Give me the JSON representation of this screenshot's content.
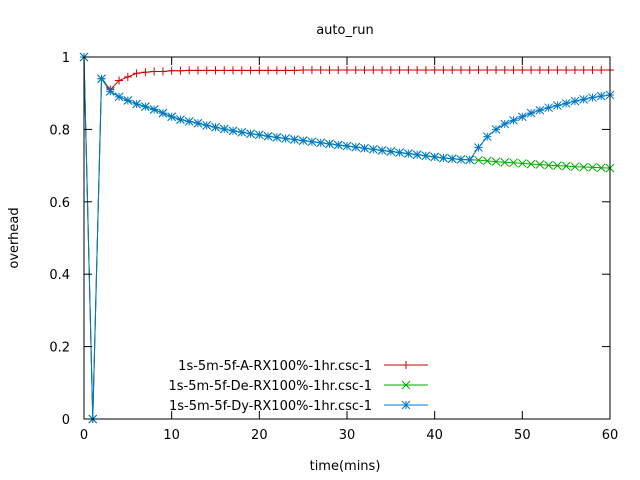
{
  "chart_data": {
    "type": "line",
    "title": "auto_run",
    "xlabel": "time(mins)",
    "ylabel": "overhead",
    "xlim": [
      0,
      60
    ],
    "ylim": [
      0,
      1
    ],
    "xticks": [
      0,
      10,
      20,
      30,
      40,
      50,
      60
    ],
    "yticks": [
      0,
      0.2,
      0.4,
      0.6,
      0.8,
      1
    ],
    "ytick_labels": [
      "0",
      "0.2",
      "0.4",
      "0.6",
      "0.8",
      "1"
    ],
    "grid": false,
    "legend_position": "bottom-left",
    "series": [
      {
        "name": "1s-5m-5f-A-RX100%-1hr.csc-1",
        "color": "#cc0000",
        "marker": "plus",
        "points": [
          [
            0,
            1
          ],
          [
            1,
            0
          ],
          [
            2,
            0.94
          ],
          [
            3,
            0.91
          ],
          [
            4,
            0.935
          ],
          [
            5,
            0.945
          ],
          [
            6,
            0.955
          ],
          [
            7,
            0.958
          ],
          [
            8,
            0.96
          ],
          [
            9,
            0.96
          ],
          [
            10,
            0.962
          ],
          [
            11,
            0.962
          ],
          [
            12,
            0.963
          ],
          [
            13,
            0.963
          ],
          [
            14,
            0.963
          ],
          [
            15,
            0.963
          ],
          [
            16,
            0.963
          ],
          [
            17,
            0.963
          ],
          [
            18,
            0.963
          ],
          [
            19,
            0.963
          ],
          [
            20,
            0.963
          ],
          [
            21,
            0.963
          ],
          [
            22,
            0.963
          ],
          [
            23,
            0.963
          ],
          [
            24,
            0.963
          ],
          [
            25,
            0.964
          ],
          [
            26,
            0.964
          ],
          [
            27,
            0.964
          ],
          [
            28,
            0.964
          ],
          [
            29,
            0.964
          ],
          [
            30,
            0.964
          ],
          [
            31,
            0.964
          ],
          [
            32,
            0.964
          ],
          [
            33,
            0.964
          ],
          [
            34,
            0.964
          ],
          [
            35,
            0.964
          ],
          [
            36,
            0.964
          ],
          [
            37,
            0.964
          ],
          [
            38,
            0.964
          ],
          [
            39,
            0.964
          ],
          [
            40,
            0.964
          ],
          [
            41,
            0.964
          ],
          [
            42,
            0.964
          ],
          [
            43,
            0.964
          ],
          [
            44,
            0.964
          ],
          [
            45,
            0.964
          ],
          [
            46,
            0.964
          ],
          [
            47,
            0.964
          ],
          [
            48,
            0.964
          ],
          [
            49,
            0.964
          ],
          [
            50,
            0.964
          ],
          [
            51,
            0.964
          ],
          [
            52,
            0.964
          ],
          [
            53,
            0.964
          ],
          [
            54,
            0.964
          ],
          [
            55,
            0.964
          ],
          [
            56,
            0.964
          ],
          [
            57,
            0.964
          ],
          [
            58,
            0.964
          ],
          [
            59,
            0.964
          ],
          [
            60,
            0.964
          ]
        ]
      },
      {
        "name": "1s-5m-5f-De-RX100%-1hr.csc-1",
        "color": "#00aa00",
        "marker": "cross",
        "points": [
          [
            0,
            1
          ],
          [
            1,
            0
          ],
          [
            2,
            0.94
          ],
          [
            3,
            0.905
          ],
          [
            4,
            0.89
          ],
          [
            5,
            0.88
          ],
          [
            6,
            0.87
          ],
          [
            7,
            0.863
          ],
          [
            8,
            0.855
          ],
          [
            9,
            0.845
          ],
          [
            10,
            0.835
          ],
          [
            11,
            0.827
          ],
          [
            12,
            0.822
          ],
          [
            13,
            0.817
          ],
          [
            14,
            0.811
          ],
          [
            15,
            0.806
          ],
          [
            16,
            0.801
          ],
          [
            17,
            0.796
          ],
          [
            18,
            0.792
          ],
          [
            19,
            0.788
          ],
          [
            20,
            0.785
          ],
          [
            21,
            0.781
          ],
          [
            22,
            0.778
          ],
          [
            23,
            0.775
          ],
          [
            24,
            0.772
          ],
          [
            25,
            0.769
          ],
          [
            26,
            0.766
          ],
          [
            27,
            0.763
          ],
          [
            28,
            0.76
          ],
          [
            29,
            0.757
          ],
          [
            30,
            0.754
          ],
          [
            31,
            0.751
          ],
          [
            32,
            0.748
          ],
          [
            33,
            0.745
          ],
          [
            34,
            0.742
          ],
          [
            35,
            0.739
          ],
          [
            36,
            0.736
          ],
          [
            37,
            0.733
          ],
          [
            38,
            0.73
          ],
          [
            39,
            0.727
          ],
          [
            40,
            0.724
          ],
          [
            41,
            0.721
          ],
          [
            42,
            0.719
          ],
          [
            43,
            0.717
          ],
          [
            44,
            0.716
          ],
          [
            45,
            0.715
          ],
          [
            46,
            0.713
          ],
          [
            47,
            0.711
          ],
          [
            48,
            0.709
          ],
          [
            49,
            0.708
          ],
          [
            50,
            0.706
          ],
          [
            51,
            0.704
          ],
          [
            52,
            0.703
          ],
          [
            53,
            0.701
          ],
          [
            54,
            0.7
          ],
          [
            55,
            0.699
          ],
          [
            56,
            0.697
          ],
          [
            57,
            0.696
          ],
          [
            58,
            0.695
          ],
          [
            59,
            0.694
          ],
          [
            60,
            0.693
          ]
        ]
      },
      {
        "name": "1s-5m-5f-Dy-RX100%-1hr.csc-1",
        "color": "#0077cc",
        "marker": "star",
        "points": [
          [
            0,
            1
          ],
          [
            1,
            0
          ],
          [
            2,
            0.94
          ],
          [
            3,
            0.905
          ],
          [
            4,
            0.89
          ],
          [
            5,
            0.88
          ],
          [
            6,
            0.87
          ],
          [
            7,
            0.863
          ],
          [
            8,
            0.855
          ],
          [
            9,
            0.845
          ],
          [
            10,
            0.835
          ],
          [
            11,
            0.827
          ],
          [
            12,
            0.822
          ],
          [
            13,
            0.817
          ],
          [
            14,
            0.811
          ],
          [
            15,
            0.806
          ],
          [
            16,
            0.801
          ],
          [
            17,
            0.796
          ],
          [
            18,
            0.792
          ],
          [
            19,
            0.788
          ],
          [
            20,
            0.785
          ],
          [
            21,
            0.781
          ],
          [
            22,
            0.778
          ],
          [
            23,
            0.775
          ],
          [
            24,
            0.772
          ],
          [
            25,
            0.769
          ],
          [
            26,
            0.766
          ],
          [
            27,
            0.763
          ],
          [
            28,
            0.76
          ],
          [
            29,
            0.757
          ],
          [
            30,
            0.754
          ],
          [
            31,
            0.751
          ],
          [
            32,
            0.748
          ],
          [
            33,
            0.745
          ],
          [
            34,
            0.742
          ],
          [
            35,
            0.739
          ],
          [
            36,
            0.736
          ],
          [
            37,
            0.733
          ],
          [
            38,
            0.73
          ],
          [
            39,
            0.727
          ],
          [
            40,
            0.724
          ],
          [
            41,
            0.721
          ],
          [
            42,
            0.719
          ],
          [
            43,
            0.717
          ],
          [
            44,
            0.716
          ],
          [
            45,
            0.75
          ],
          [
            46,
            0.78
          ],
          [
            47,
            0.8
          ],
          [
            48,
            0.815
          ],
          [
            49,
            0.825
          ],
          [
            50,
            0.835
          ],
          [
            51,
            0.845
          ],
          [
            52,
            0.853
          ],
          [
            53,
            0.86
          ],
          [
            54,
            0.866
          ],
          [
            55,
            0.872
          ],
          [
            56,
            0.878
          ],
          [
            57,
            0.883
          ],
          [
            58,
            0.888
          ],
          [
            59,
            0.892
          ],
          [
            60,
            0.895
          ]
        ]
      }
    ]
  }
}
